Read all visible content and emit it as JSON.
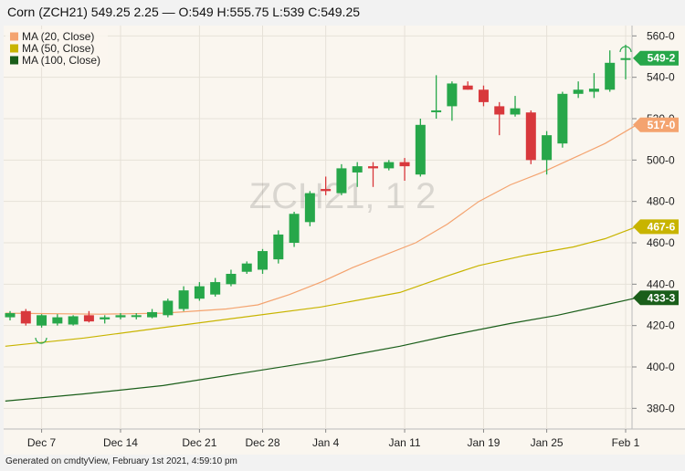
{
  "header": {
    "title": "Corn (ZCH21) 549.25 2.25 — O:549 H:555.75 L:539 C:549.25"
  },
  "footer": {
    "text": "Generated on cmdtyView, February 1st 2021, 4:59:10 pm"
  },
  "chart_data": {
    "type": "candlestick",
    "watermark": "ZCH21, 1 2",
    "ylim": [
      370,
      565
    ],
    "y_ticks": [
      380,
      400,
      420,
      440,
      460,
      480,
      500,
      520,
      540,
      560
    ],
    "y_tick_labels": [
      "380-0",
      "400-0",
      "420-0",
      "440-0",
      "460-0",
      "480-0",
      "500-0",
      "520-0",
      "540-0",
      "560-0"
    ],
    "x_tick_labels": [
      {
        "label": "Dec 7",
        "index": 2
      },
      {
        "label": "Dec 14",
        "index": 7
      },
      {
        "label": "Dec 21",
        "index": 12
      },
      {
        "label": "Dec 28",
        "index": 16
      },
      {
        "label": "Jan 4",
        "index": 20
      },
      {
        "label": "Jan 11",
        "index": 25
      },
      {
        "label": "Jan 19",
        "index": 30
      },
      {
        "label": "Jan 25",
        "index": 34
      },
      {
        "label": "Feb 1",
        "index": 39
      }
    ],
    "legend": [
      {
        "name": "MA (20, Close)",
        "color": "#f4a36f"
      },
      {
        "name": "MA (50, Close)",
        "color": "#c8b400"
      },
      {
        "name": "MA (100, Close)",
        "color": "#1a5e1a"
      }
    ],
    "badges": [
      {
        "label": "549-2",
        "value": 549.25,
        "color": "#27a74a"
      },
      {
        "label": "517-0",
        "value": 517.0,
        "color": "#f4a36f"
      },
      {
        "label": "467-6",
        "value": 467.75,
        "color": "#c8b400"
      },
      {
        "label": "433-3",
        "value": 433.4,
        "color": "#1a5e1a"
      }
    ],
    "candles": [
      {
        "o": 424.0,
        "h": 427.0,
        "l": 422.5,
        "c": 426.0
      },
      {
        "o": 427.0,
        "h": 428.0,
        "l": 420.0,
        "c": 421.0
      },
      {
        "o": 420.0,
        "h": 425.5,
        "l": 419.0,
        "c": 425.0
      },
      {
        "o": 421.0,
        "h": 425.5,
        "l": 420.0,
        "c": 424.0
      },
      {
        "o": 420.5,
        "h": 425.0,
        "l": 420.0,
        "c": 424.5
      },
      {
        "o": 425.0,
        "h": 427.0,
        "l": 421.5,
        "c": 422.0
      },
      {
        "o": 423.0,
        "h": 425.0,
        "l": 421.0,
        "c": 424.0
      },
      {
        "o": 424.0,
        "h": 426.0,
        "l": 423.0,
        "c": 425.0
      },
      {
        "o": 424.5,
        "h": 426.0,
        "l": 423.0,
        "c": 425.0
      },
      {
        "o": 424.0,
        "h": 428.0,
        "l": 423.5,
        "c": 426.5
      },
      {
        "o": 425.0,
        "h": 433.0,
        "l": 424.0,
        "c": 432.0
      },
      {
        "o": 428.0,
        "h": 439.0,
        "l": 427.0,
        "c": 437.0
      },
      {
        "o": 433.0,
        "h": 441.0,
        "l": 432.0,
        "c": 439.0
      },
      {
        "o": 435.0,
        "h": 443.0,
        "l": 434.0,
        "c": 441.0
      },
      {
        "o": 440.0,
        "h": 447.0,
        "l": 439.0,
        "c": 445.0
      },
      {
        "o": 446.0,
        "h": 451.0,
        "l": 445.0,
        "c": 450.0
      },
      {
        "o": 447.0,
        "h": 457.0,
        "l": 445.0,
        "c": 456.0
      },
      {
        "o": 452.0,
        "h": 466.0,
        "l": 450.0,
        "c": 464.0
      },
      {
        "o": 460.0,
        "h": 475.0,
        "l": 458.0,
        "c": 474.0
      },
      {
        "o": 470.0,
        "h": 485.0,
        "l": 468.0,
        "c": 484.0
      },
      {
        "o": 486.0,
        "h": 492.0,
        "l": 483.0,
        "c": 485.0
      },
      {
        "o": 484.0,
        "h": 498.0,
        "l": 483.0,
        "c": 496.0
      },
      {
        "o": 494.0,
        "h": 499.0,
        "l": 487.0,
        "c": 497.0
      },
      {
        "o": 497.0,
        "h": 499.0,
        "l": 487.0,
        "c": 496.0
      },
      {
        "o": 496.0,
        "h": 500.0,
        "l": 495.0,
        "c": 499.0
      },
      {
        "o": 499.0,
        "h": 501.0,
        "l": 490.0,
        "c": 497.0
      },
      {
        "o": 493.0,
        "h": 520.0,
        "l": 492.0,
        "c": 517.0
      },
      {
        "o": 524.0,
        "h": 541.0,
        "l": 520.0,
        "c": 524.0
      },
      {
        "o": 526.0,
        "h": 538.0,
        "l": 519.0,
        "c": 537.0
      },
      {
        "o": 536.0,
        "h": 538.0,
        "l": 534.0,
        "c": 534.0
      },
      {
        "o": 534.0,
        "h": 536.0,
        "l": 526.0,
        "c": 528.0
      },
      {
        "o": 526.0,
        "h": 528.0,
        "l": 512.0,
        "c": 522.0
      },
      {
        "o": 522.0,
        "h": 531.0,
        "l": 521.0,
        "c": 525.0
      },
      {
        "o": 523.0,
        "h": 524.0,
        "l": 498.0,
        "c": 500.0
      },
      {
        "o": 500.0,
        "h": 514.0,
        "l": 493.0,
        "c": 512.0
      },
      {
        "o": 508.0,
        "h": 533.0,
        "l": 506.0,
        "c": 532.0
      },
      {
        "o": 532.0,
        "h": 538.0,
        "l": 530.0,
        "c": 534.0
      },
      {
        "o": 533.0,
        "h": 542.0,
        "l": 530.0,
        "c": 534.5
      },
      {
        "o": 534.0,
        "h": 553.0,
        "l": 533.0,
        "c": 547.0
      },
      {
        "o": 549.0,
        "h": 555.75,
        "l": 539.0,
        "c": 549.25
      }
    ],
    "ma20": [
      [
        0,
        426
      ],
      [
        6,
        425.5
      ],
      [
        10,
        426
      ],
      [
        14,
        428
      ],
      [
        16,
        430
      ],
      [
        18,
        435
      ],
      [
        20,
        441
      ],
      [
        22,
        448
      ],
      [
        24,
        454
      ],
      [
        26,
        460
      ],
      [
        28,
        469
      ],
      [
        30,
        480
      ],
      [
        32,
        488
      ],
      [
        34,
        494
      ],
      [
        36,
        501
      ],
      [
        38,
        508
      ],
      [
        40,
        517
      ]
    ],
    "ma50": [
      [
        0,
        410
      ],
      [
        5,
        414
      ],
      [
        10,
        419
      ],
      [
        15,
        424
      ],
      [
        20,
        429
      ],
      [
        25,
        436
      ],
      [
        28,
        444
      ],
      [
        30,
        449
      ],
      [
        33,
        454
      ],
      [
        36,
        458
      ],
      [
        38,
        462
      ],
      [
        40,
        467.75
      ]
    ],
    "ma100": [
      [
        0,
        383.5
      ],
      [
        5,
        387
      ],
      [
        10,
        391
      ],
      [
        15,
        397
      ],
      [
        20,
        403
      ],
      [
        25,
        410
      ],
      [
        28,
        415
      ],
      [
        32,
        421
      ],
      [
        35,
        425
      ],
      [
        38,
        430
      ],
      [
        40,
        433.4
      ]
    ]
  }
}
